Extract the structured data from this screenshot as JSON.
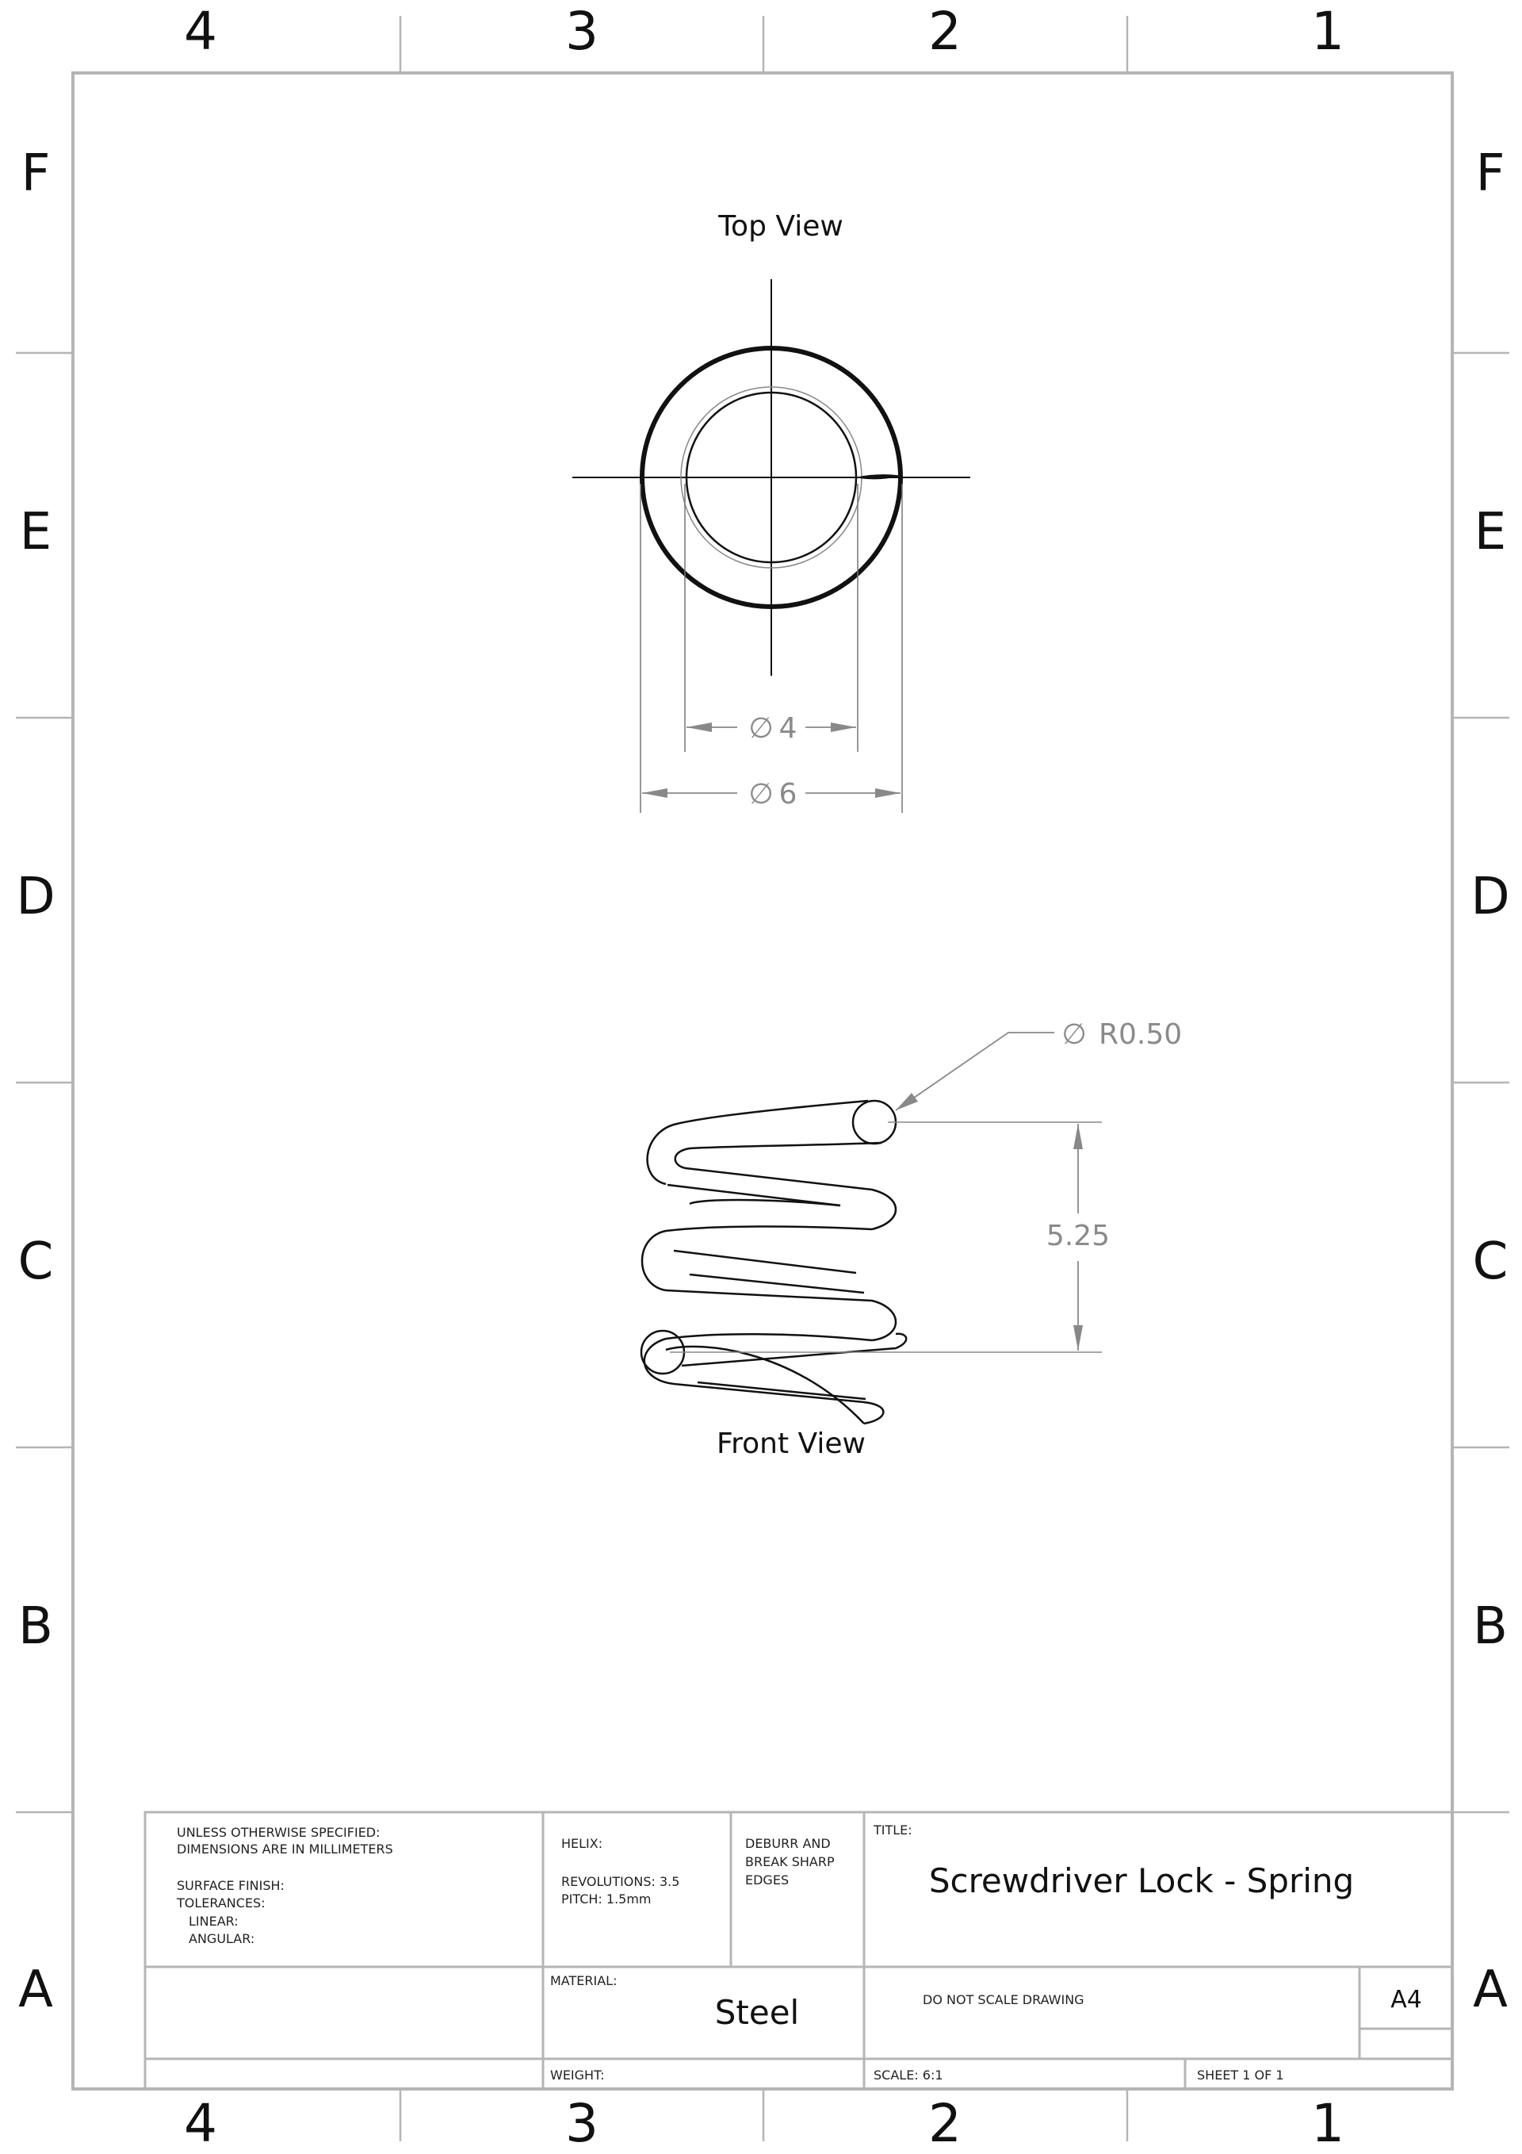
{
  "zones": {
    "columns": [
      "4",
      "3",
      "2",
      "1"
    ],
    "rows": [
      "F",
      "E",
      "D",
      "C",
      "B",
      "A"
    ]
  },
  "views": {
    "top": {
      "label": "Top View",
      "inner_diameter": "4",
      "outer_diameter": "6",
      "diameter_symbol": "∅"
    },
    "front": {
      "label": "Front View",
      "wire_radius": "R0.50",
      "height": "5.25"
    }
  },
  "title_block": {
    "notes": [
      "UNLESS OTHERWISE SPECIFIED:",
      "DIMENSIONS ARE IN MILLIMETERS",
      "",
      "SURFACE FINISH:",
      "TOLERANCES:",
      "LINEAR:",
      "ANGULAR:"
    ],
    "helix_label": "HELIX:",
    "revolutions": "REVOLUTIONS: 3.5",
    "pitch": "PITCH: 1.5mm",
    "deburr": [
      "DEBURR AND",
      "BREAK SHARP",
      "EDGES"
    ],
    "title_label": "TITLE:",
    "title": "Screwdriver Lock - Spring",
    "material_label": "MATERIAL:",
    "material": "Steel",
    "do_not_scale": "DO NOT SCALE DRAWING",
    "size": "A4",
    "weight_label": "WEIGHT:",
    "scale": "SCALE: 6:1",
    "sheet": "SHEET 1 OF 1"
  },
  "colors": {
    "line": "#111111",
    "border": "#b5b5b5",
    "dimension": "#8a8a8a"
  }
}
